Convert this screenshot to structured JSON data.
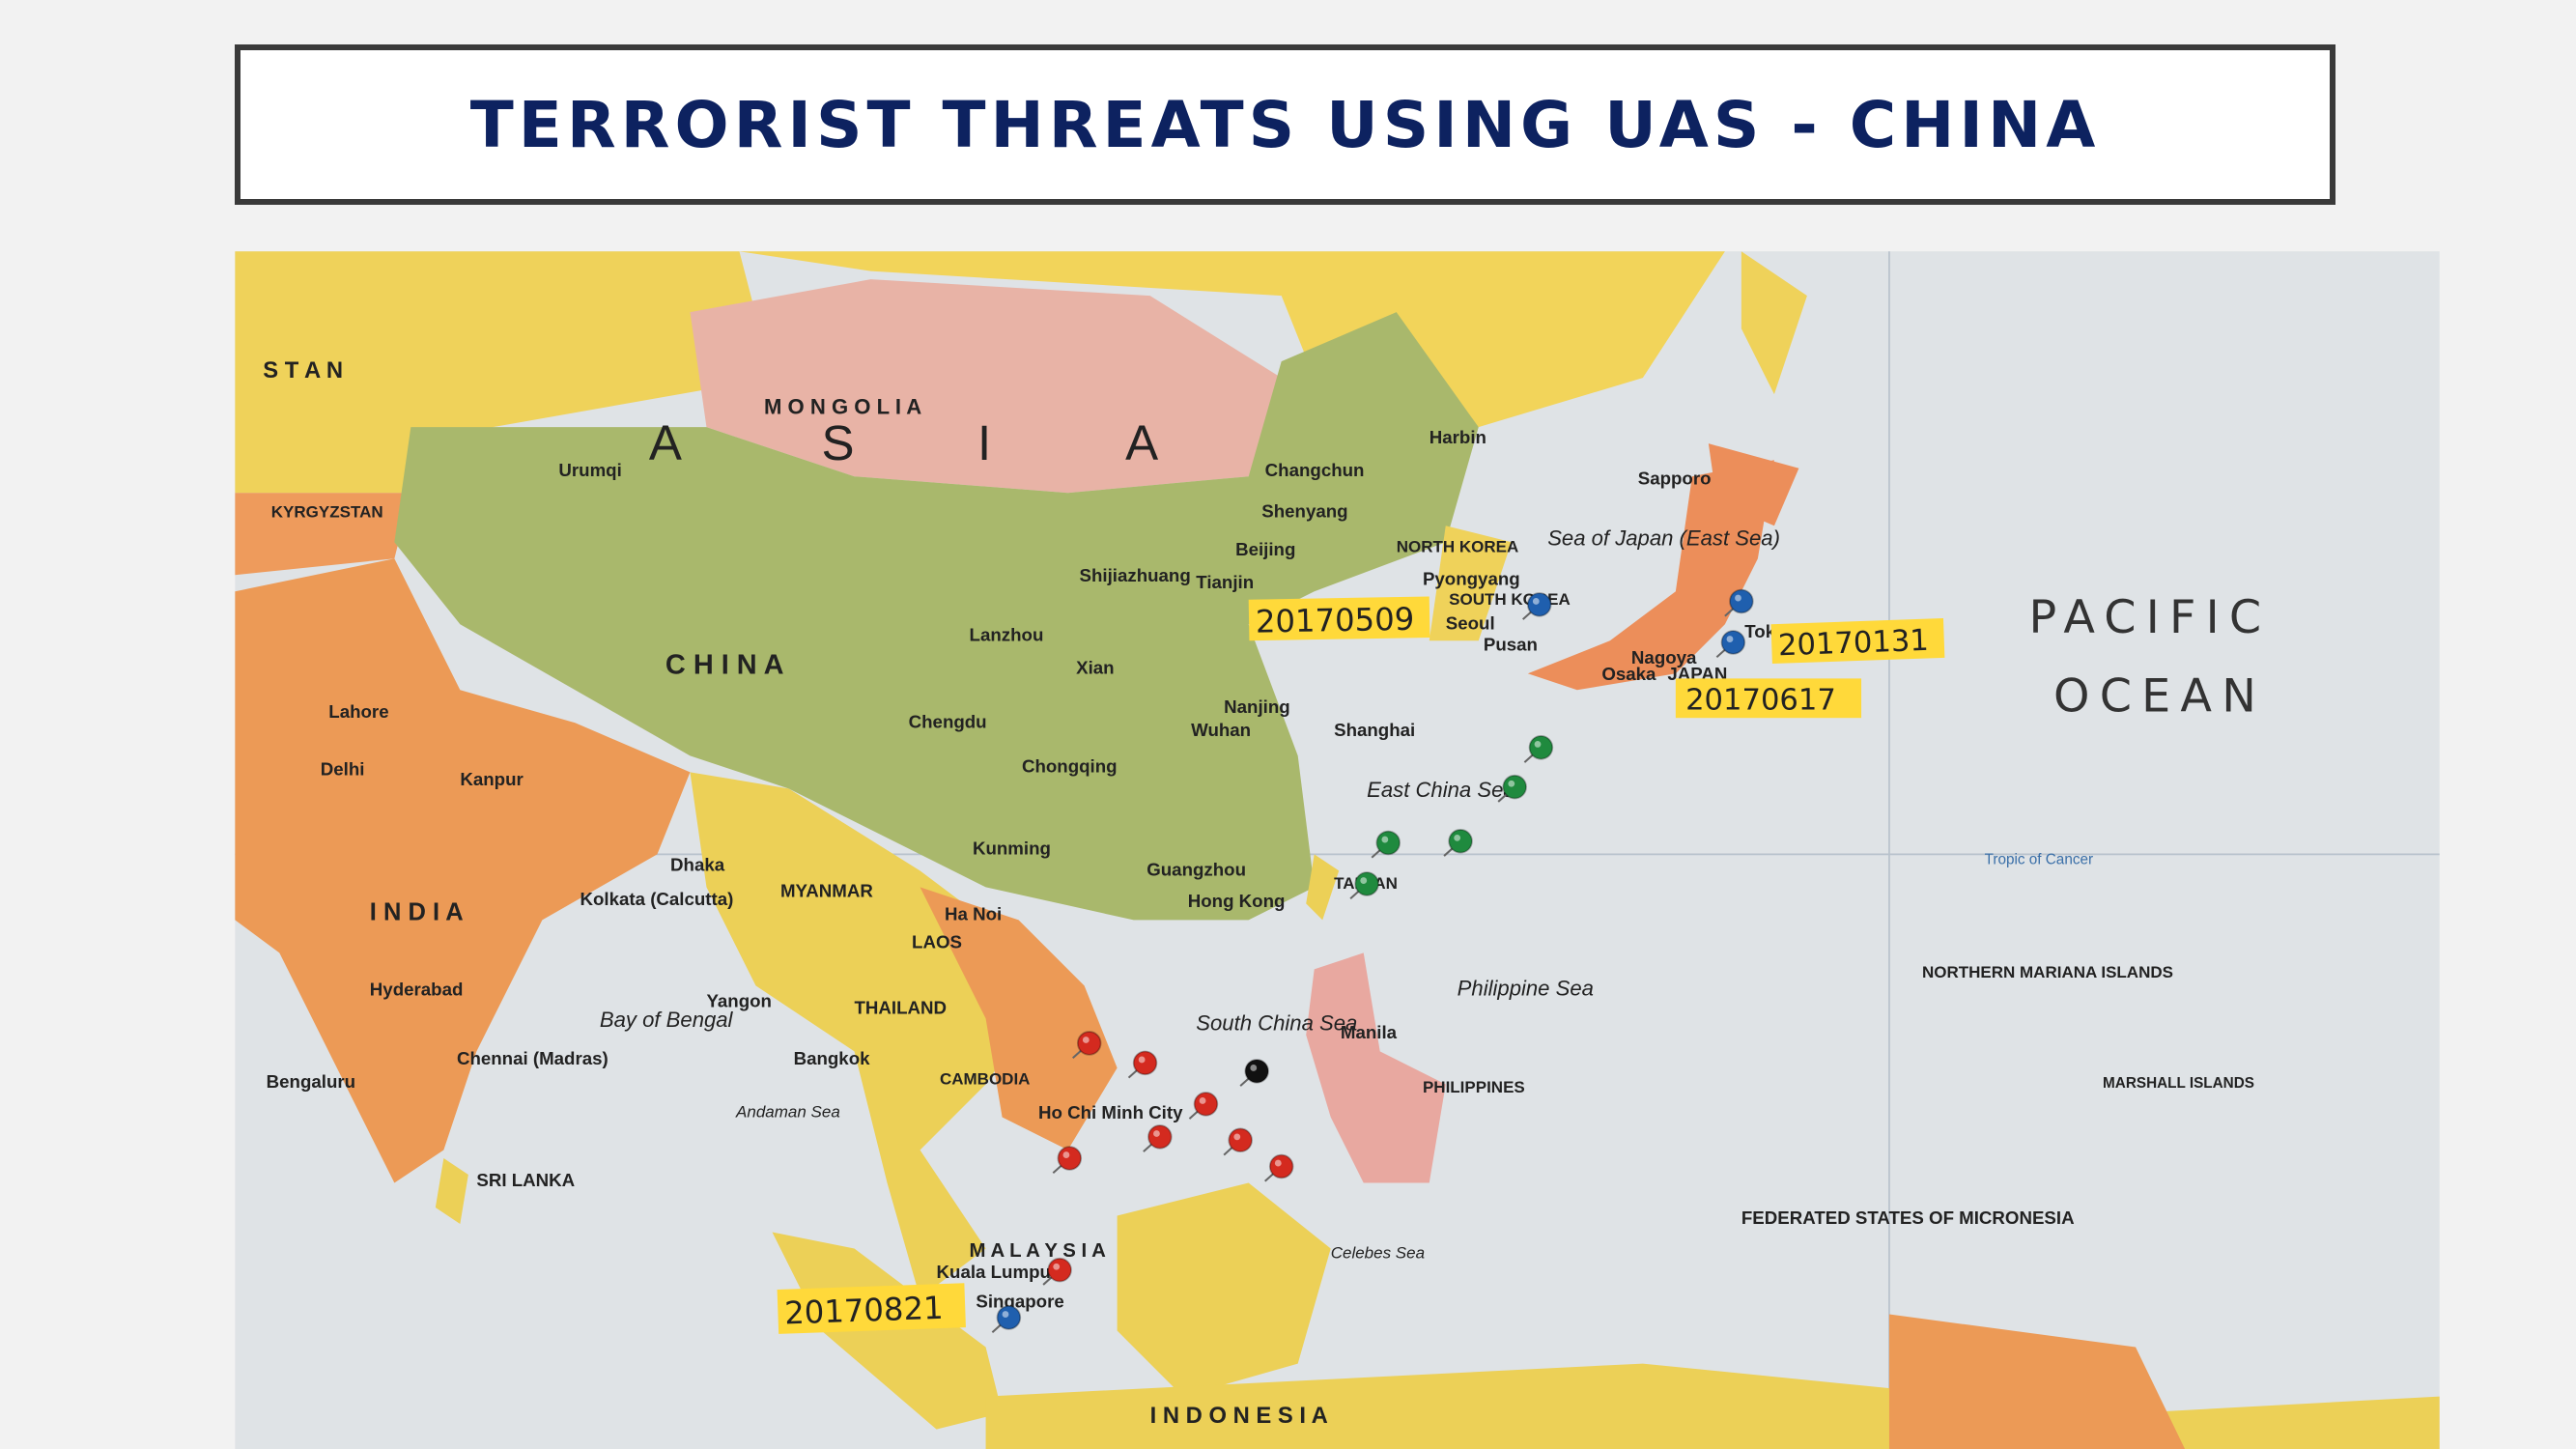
{
  "slide": {
    "title": "TERRORIST THREATS USING UAS - CHINA"
  },
  "map": {
    "ocean_labels": [
      "PACIFIC",
      "OCEAN"
    ],
    "region_labels": [
      "A",
      "S",
      "I",
      "A",
      "M O N G O L I A",
      "C H I N A",
      "I N D I A",
      "JAPAN",
      "MYANMAR",
      "THAILAND",
      "LAOS",
      "CAMBODIA",
      "M A L A Y S I A",
      "I N D O N E S I A",
      "PHILIPPINES",
      "SOUTH KOREA",
      "NORTH KOREA",
      "TAIWAN",
      "S T A N",
      "KYRGYZSTAN",
      "SRI LANKA",
      "NORTHERN MARIANA ISLANDS",
      "FEDERATED STATES OF MICRONESIA",
      "MARSHALL ISLANDS"
    ],
    "sea_labels": [
      "Sea of Japan (East Sea)",
      "East China Sea",
      "South China Sea",
      "Philippine Sea",
      "Bay of Bengal",
      "Andaman Sea",
      "Celebes Sea",
      "Tropic of Cancer"
    ],
    "city_labels": [
      "Harbin",
      "Changchun",
      "Shenyang",
      "Beijing",
      "Tianjin",
      "Pyongyang",
      "Seoul",
      "Pusan",
      "Tokyo",
      "Osaka",
      "Nagoya",
      "Sapporo",
      "Xian",
      "Chengdu",
      "Chongqing",
      "Wuhan",
      "Nanjing",
      "Shanghai",
      "Guangzhou",
      "Hong Kong",
      "Ha Noi",
      "Bangkok",
      "Ho Chi Minh City",
      "Manila",
      "Kuala Lumpur",
      "Singapore",
      "Yangon",
      "Dhaka",
      "Kolkata (Calcutta)",
      "Delhi",
      "Kanpur",
      "Hyderabad",
      "Chennai (Madras)",
      "Bengaluru",
      "Lahore",
      "Urumqi",
      "Lanzhou",
      "Kunming",
      "Shijiazhuang"
    ],
    "date_notes": [
      "20170509",
      "20170131",
      "20170617",
      "20170821"
    ],
    "pin_colors": {
      "blue": "#1f5fae",
      "green": "#1f8a3e",
      "red": "#d42a1f",
      "black": "#111111"
    },
    "note_color": "#ffd93a"
  }
}
